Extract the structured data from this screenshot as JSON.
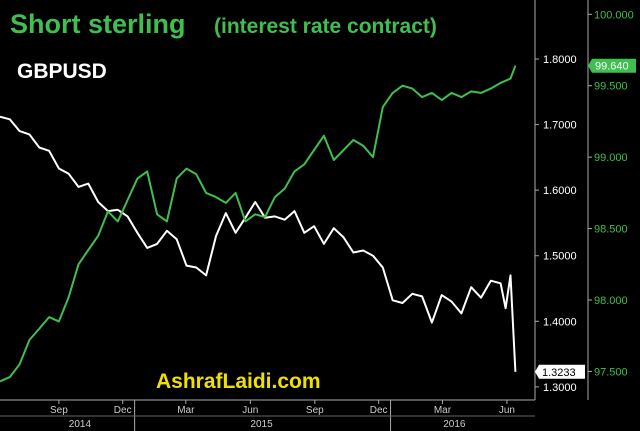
{
  "chart_data": {
    "type": "line",
    "title": "Short sterling",
    "subtitle": "(interest rate contract)",
    "series": [
      {
        "name": "GBPUSD",
        "axis": "left",
        "color": "#ffffff",
        "last_value_label": "1.3233",
        "points": [
          [
            "2014-06-23",
            1.712
          ],
          [
            "2014-07-07",
            1.708
          ],
          [
            "2014-07-21",
            1.69
          ],
          [
            "2014-08-04",
            1.685
          ],
          [
            "2014-08-18",
            1.665
          ],
          [
            "2014-09-01",
            1.66
          ],
          [
            "2014-09-15",
            1.633
          ],
          [
            "2014-09-29",
            1.625
          ],
          [
            "2014-10-13",
            1.605
          ],
          [
            "2014-10-27",
            1.61
          ],
          [
            "2014-11-10",
            1.582
          ],
          [
            "2014-11-24",
            1.568
          ],
          [
            "2014-12-08",
            1.57
          ],
          [
            "2014-12-22",
            1.56
          ],
          [
            "2015-01-05",
            1.535
          ],
          [
            "2015-01-19",
            1.512
          ],
          [
            "2015-02-02",
            1.518
          ],
          [
            "2015-02-16",
            1.538
          ],
          [
            "2015-03-02",
            1.525
          ],
          [
            "2015-03-16",
            1.485
          ],
          [
            "2015-03-30",
            1.482
          ],
          [
            "2015-04-13",
            1.47
          ],
          [
            "2015-04-27",
            1.53
          ],
          [
            "2015-05-11",
            1.565
          ],
          [
            "2015-05-25",
            1.535
          ],
          [
            "2015-06-08",
            1.558
          ],
          [
            "2015-06-22",
            1.582
          ],
          [
            "2015-07-06",
            1.558
          ],
          [
            "2015-07-20",
            1.56
          ],
          [
            "2015-08-03",
            1.555
          ],
          [
            "2015-08-17",
            1.568
          ],
          [
            "2015-08-31",
            1.535
          ],
          [
            "2015-09-14",
            1.545
          ],
          [
            "2015-09-28",
            1.518
          ],
          [
            "2015-10-12",
            1.542
          ],
          [
            "2015-10-26",
            1.528
          ],
          [
            "2015-11-09",
            1.505
          ],
          [
            "2015-11-23",
            1.508
          ],
          [
            "2015-12-07",
            1.5
          ],
          [
            "2015-12-21",
            1.482
          ],
          [
            "2016-01-04",
            1.432
          ],
          [
            "2016-01-18",
            1.428
          ],
          [
            "2016-02-01",
            1.442
          ],
          [
            "2016-02-15",
            1.438
          ],
          [
            "2016-02-29",
            1.398
          ],
          [
            "2016-03-14",
            1.44
          ],
          [
            "2016-03-28",
            1.43
          ],
          [
            "2016-04-11",
            1.412
          ],
          [
            "2016-04-25",
            1.452
          ],
          [
            "2016-05-09",
            1.436
          ],
          [
            "2016-05-23",
            1.462
          ],
          [
            "2016-06-06",
            1.458
          ],
          [
            "2016-06-13",
            1.42
          ],
          [
            "2016-06-20",
            1.47
          ],
          [
            "2016-06-27",
            1.323
          ]
        ]
      },
      {
        "name": "Short sterling",
        "axis": "right",
        "color": "#3fbf4f",
        "last_value_label": "99.640",
        "points": [
          [
            "2014-06-23",
            97.43
          ],
          [
            "2014-07-07",
            97.46
          ],
          [
            "2014-07-21",
            97.55
          ],
          [
            "2014-08-04",
            97.72
          ],
          [
            "2014-08-18",
            97.8
          ],
          [
            "2014-09-01",
            97.88
          ],
          [
            "2014-09-15",
            97.85
          ],
          [
            "2014-09-29",
            98.02
          ],
          [
            "2014-10-13",
            98.25
          ],
          [
            "2014-10-27",
            98.35
          ],
          [
            "2014-11-10",
            98.45
          ],
          [
            "2014-11-24",
            98.62
          ],
          [
            "2014-12-08",
            98.55
          ],
          [
            "2014-12-22",
            98.7
          ],
          [
            "2015-01-05",
            98.85
          ],
          [
            "2015-01-19",
            98.9
          ],
          [
            "2015-02-02",
            98.6
          ],
          [
            "2015-02-16",
            98.55
          ],
          [
            "2015-03-02",
            98.85
          ],
          [
            "2015-03-16",
            98.92
          ],
          [
            "2015-03-30",
            98.88
          ],
          [
            "2015-04-13",
            98.75
          ],
          [
            "2015-04-27",
            98.72
          ],
          [
            "2015-05-11",
            98.68
          ],
          [
            "2015-05-25",
            98.75
          ],
          [
            "2015-06-08",
            98.55
          ],
          [
            "2015-06-22",
            98.6
          ],
          [
            "2015-07-06",
            98.58
          ],
          [
            "2015-07-20",
            98.72
          ],
          [
            "2015-08-03",
            98.78
          ],
          [
            "2015-08-17",
            98.9
          ],
          [
            "2015-08-31",
            98.95
          ],
          [
            "2015-09-14",
            99.05
          ],
          [
            "2015-09-28",
            99.15
          ],
          [
            "2015-10-12",
            98.98
          ],
          [
            "2015-10-26",
            99.05
          ],
          [
            "2015-11-09",
            99.12
          ],
          [
            "2015-11-23",
            99.08
          ],
          [
            "2015-12-07",
            99.0
          ],
          [
            "2015-12-21",
            99.35
          ],
          [
            "2016-01-04",
            99.45
          ],
          [
            "2016-01-18",
            99.5
          ],
          [
            "2016-02-01",
            99.48
          ],
          [
            "2016-02-15",
            99.42
          ],
          [
            "2016-02-29",
            99.45
          ],
          [
            "2016-03-14",
            99.4
          ],
          [
            "2016-03-28",
            99.45
          ],
          [
            "2016-04-11",
            99.42
          ],
          [
            "2016-04-25",
            99.46
          ],
          [
            "2016-05-09",
            99.45
          ],
          [
            "2016-05-23",
            99.48
          ],
          [
            "2016-06-06",
            99.52
          ],
          [
            "2016-06-20",
            99.55
          ],
          [
            "2016-06-27",
            99.64
          ]
        ]
      }
    ],
    "y_left": {
      "ticks": [
        "1.3000",
        "1.4000",
        "1.5000",
        "1.6000",
        "1.7000",
        "1.8000"
      ],
      "ylim": [
        1.28,
        1.89
      ],
      "color": "#ffffff"
    },
    "y_right": {
      "ticks": [
        "97.500",
        "98.000",
        "98.500",
        "99.000",
        "99.500",
        "100.000"
      ],
      "ylim": [
        97.3,
        100.1
      ],
      "color": "#3fbf4f"
    },
    "x_axis": {
      "xlim": [
        "2014-06-23",
        "2016-07-25"
      ],
      "month_ticks": [
        {
          "label": "Sep",
          "date": "2014-09-15"
        },
        {
          "label": "Dec",
          "date": "2014-12-15"
        },
        {
          "label": "Mar",
          "date": "2015-03-15"
        },
        {
          "label": "Jun",
          "date": "2015-06-15"
        },
        {
          "label": "Sep",
          "date": "2015-09-15"
        },
        {
          "label": "Dec",
          "date": "2015-12-15"
        },
        {
          "label": "Mar",
          "date": "2016-03-15"
        },
        {
          "label": "Jun",
          "date": "2016-06-15"
        }
      ],
      "year_labels": [
        {
          "label": "2014",
          "date": "2014-10-15"
        },
        {
          "label": "2015",
          "date": "2015-07-01"
        },
        {
          "label": "2016",
          "date": "2016-04-01"
        }
      ],
      "year_boundaries": [
        "2015-01-01",
        "2016-01-01"
      ]
    },
    "watermark": "AshrafLaidi.com",
    "grid": false
  }
}
